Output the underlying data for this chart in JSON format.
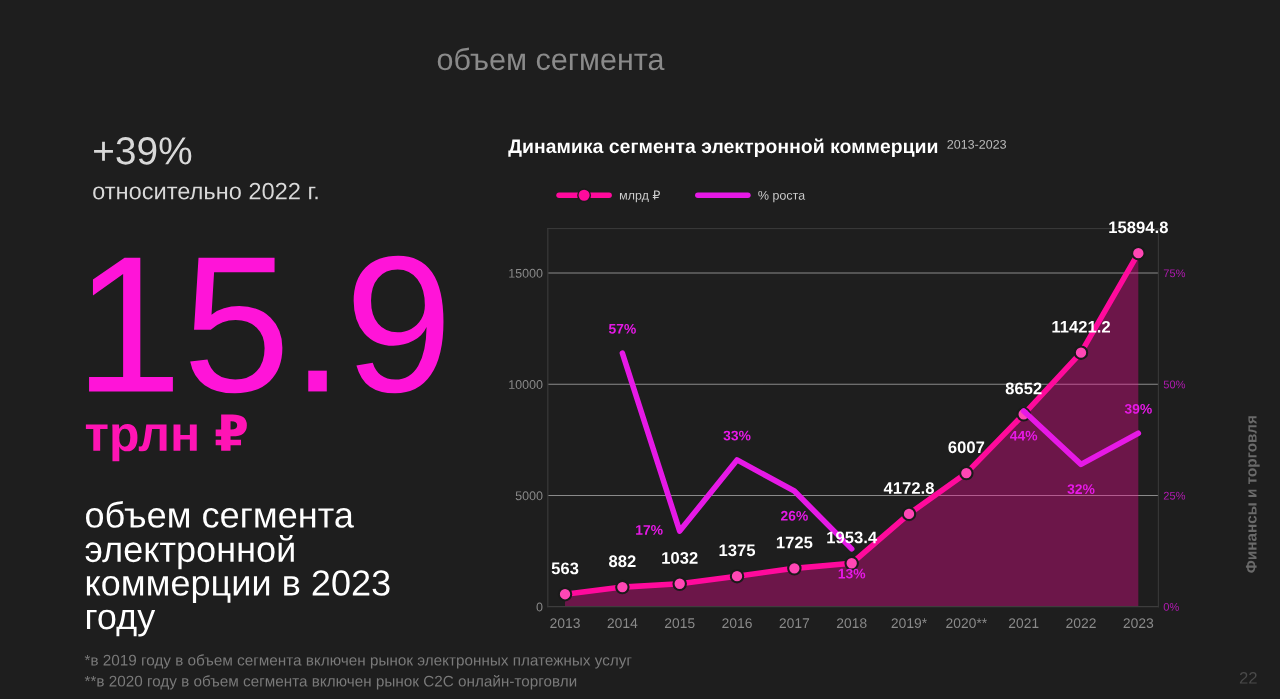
{
  "chart_data": [
    {
      "type": "other",
      "title": "объем сегмента",
      "annotations": [
        "+39%",
        "относительно 2022 г.",
        "15.9",
        "трлн ₽",
        "объем сегмента\nэлектронной\nкоммерции в 2023\nгоду",
        "*в 2019 году в объем сегмента включен рынок электронных платежных услуг",
        "**в 2020 году в объем сегмента включен рынок C2C онлайн-торговли",
        "Финансы и торговля",
        "22"
      ]
    },
    {
      "type": "line",
      "title": "Динамика сегмента электронной коммерции",
      "subtitle": "2013-2023",
      "categories": [
        "2013",
        "2014",
        "2015",
        "2016",
        "2017",
        "2018",
        "2019*",
        "2020**",
        "2021",
        "2022",
        "2023"
      ],
      "series": [
        {
          "name": "млрд ₽",
          "type": "area",
          "color": "#ff0a9c",
          "marker": "circle",
          "data_labels": true,
          "values": [
            563,
            882,
            1032,
            1375,
            1725,
            1953.4,
            4172.8,
            6007,
            8652,
            11421.2,
            15894.8
          ]
        },
        {
          "name": "% роста",
          "type": "line",
          "axis": "y2",
          "color": "#e619e6",
          "values": [
            null,
            57,
            17,
            33,
            26,
            13,
            null,
            null,
            44,
            32,
            39
          ],
          "value_labels": [
            null,
            "57%",
            "17%",
            "33%",
            "26%",
            "13%",
            null,
            null,
            "44%",
            "32%",
            "39%"
          ]
        }
      ],
      "ylim": [
        0,
        17000
      ],
      "yticks": [
        0,
        5000,
        10000,
        15000
      ],
      "y2lim": [
        0,
        85
      ],
      "y2ticks": [
        {
          "value": 0,
          "label": "0%"
        },
        {
          "value": 25,
          "label": "25%"
        },
        {
          "value": 50,
          "label": "50%"
        },
        {
          "value": 75,
          "label": "75%"
        }
      ],
      "grid": "y",
      "legend": "top left"
    }
  ]
}
